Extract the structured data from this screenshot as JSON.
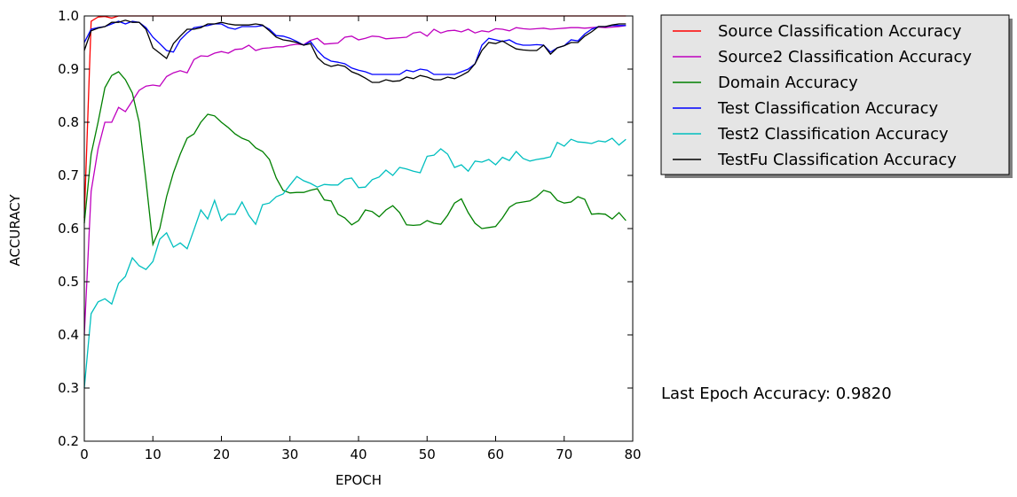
{
  "chart_data": {
    "type": "line",
    "title": "",
    "xlabel": "EPOCH",
    "ylabel": "ACCURACY",
    "xlim": [
      0,
      80
    ],
    "ylim": [
      0.2,
      1.0
    ],
    "xticks": [
      0,
      10,
      20,
      30,
      40,
      50,
      60,
      70,
      80
    ],
    "yticks": [
      0.2,
      0.3,
      0.4,
      0.5,
      0.6,
      0.7,
      0.8,
      0.9,
      1.0
    ],
    "xtick_labels": [
      "0",
      "10",
      "20",
      "30",
      "40",
      "50",
      "60",
      "70",
      "80"
    ],
    "ytick_labels": [
      "0.2",
      "0.3",
      "0.4",
      "0.5",
      "0.6",
      "0.7",
      "0.8",
      "0.9",
      "1.0"
    ],
    "grid": false,
    "legend_position": "outside-right-top",
    "annotation": "Last Epoch Accuracy: 0.9820",
    "series": [
      {
        "name": "Source Classification Accuracy",
        "color": "#ff0000",
        "x": [
          0,
          1,
          2,
          3,
          4,
          5,
          6,
          7,
          8,
          9,
          10,
          15,
          20,
          25,
          30,
          35,
          40,
          45,
          50,
          55,
          60,
          65,
          70,
          75,
          79
        ],
        "values": [
          0.62,
          0.99,
          0.998,
          0.999,
          0.996,
          1.0,
          1.0,
          1.0,
          1.0,
          1.0,
          1.0,
          1.0,
          1.0,
          1.0,
          1.0,
          1.0,
          1.0,
          1.0,
          1.0,
          1.0,
          1.0,
          1.0,
          1.0,
          1.0,
          1.0
        ]
      },
      {
        "name": "Source2 Classification Accuracy",
        "color": "#bf00bf",
        "x": [
          0,
          1,
          2,
          3,
          4,
          5,
          6,
          7,
          8,
          9,
          10,
          11,
          12,
          13,
          14,
          15,
          16,
          17,
          18,
          19,
          20,
          21,
          22,
          23,
          24,
          25,
          26,
          27,
          28,
          29,
          30,
          31,
          32,
          33,
          34,
          35,
          36,
          37,
          38,
          39,
          40,
          41,
          42,
          43,
          44,
          45,
          46,
          47,
          48,
          49,
          50,
          51,
          52,
          53,
          54,
          55,
          56,
          57,
          58,
          59,
          60,
          61,
          62,
          63,
          64,
          65,
          66,
          67,
          68,
          69,
          70,
          71,
          72,
          73,
          74,
          75,
          76,
          77,
          78,
          79
        ],
        "values": [
          0.4,
          0.67,
          0.75,
          0.8,
          0.8,
          0.828,
          0.82,
          0.84,
          0.86,
          0.868,
          0.87,
          0.868,
          0.886,
          0.893,
          0.897,
          0.893,
          0.918,
          0.925,
          0.924,
          0.93,
          0.933,
          0.93,
          0.937,
          0.938,
          0.945,
          0.935,
          0.939,
          0.94,
          0.942,
          0.942,
          0.945,
          0.947,
          0.946,
          0.954,
          0.958,
          0.947,
          0.948,
          0.949,
          0.96,
          0.962,
          0.955,
          0.958,
          0.962,
          0.961,
          0.957,
          0.958,
          0.959,
          0.96,
          0.968,
          0.97,
          0.962,
          0.975,
          0.968,
          0.972,
          0.973,
          0.97,
          0.975,
          0.968,
          0.972,
          0.97,
          0.976,
          0.975,
          0.972,
          0.978,
          0.976,
          0.975,
          0.976,
          0.977,
          0.975,
          0.976,
          0.977,
          0.978,
          0.978,
          0.977,
          0.978,
          0.979,
          0.978,
          0.979,
          0.98,
          0.982
        ]
      },
      {
        "name": "Domain Accuracy",
        "color": "#008000",
        "x": [
          0,
          1,
          2,
          3,
          4,
          5,
          6,
          7,
          8,
          9,
          10,
          11,
          12,
          13,
          14,
          15,
          16,
          17,
          18,
          19,
          20,
          21,
          22,
          23,
          24,
          25,
          26,
          27,
          28,
          29,
          30,
          31,
          32,
          33,
          34,
          35,
          36,
          37,
          38,
          39,
          40,
          41,
          42,
          43,
          44,
          45,
          46,
          47,
          48,
          49,
          50,
          51,
          52,
          53,
          54,
          55,
          56,
          57,
          58,
          59,
          60,
          61,
          62,
          63,
          64,
          65,
          66,
          67,
          68,
          69,
          70,
          71,
          72,
          73,
          74,
          75,
          76,
          77,
          78,
          79
        ],
        "values": [
          0.61,
          0.74,
          0.8,
          0.865,
          0.888,
          0.895,
          0.88,
          0.855,
          0.8,
          0.69,
          0.57,
          0.6,
          0.66,
          0.705,
          0.74,
          0.77,
          0.778,
          0.8,
          0.815,
          0.812,
          0.8,
          0.79,
          0.778,
          0.77,
          0.765,
          0.752,
          0.745,
          0.73,
          0.695,
          0.672,
          0.667,
          0.668,
          0.668,
          0.672,
          0.675,
          0.654,
          0.652,
          0.627,
          0.62,
          0.607,
          0.615,
          0.635,
          0.632,
          0.622,
          0.635,
          0.643,
          0.63,
          0.607,
          0.606,
          0.607,
          0.615,
          0.61,
          0.608,
          0.625,
          0.648,
          0.656,
          0.63,
          0.61,
          0.6,
          0.602,
          0.604,
          0.62,
          0.64,
          0.648,
          0.65,
          0.652,
          0.66,
          0.672,
          0.668,
          0.653,
          0.648,
          0.65,
          0.66,
          0.655,
          0.627,
          0.628,
          0.627,
          0.618,
          0.63,
          0.615
        ]
      },
      {
        "name": "Test Classification Accuracy",
        "color": "#0000ff",
        "x": [
          0,
          1,
          2,
          3,
          4,
          5,
          6,
          7,
          8,
          9,
          10,
          11,
          12,
          13,
          14,
          15,
          16,
          17,
          18,
          19,
          20,
          21,
          22,
          23,
          24,
          25,
          26,
          27,
          28,
          29,
          30,
          31,
          32,
          33,
          34,
          35,
          36,
          37,
          38,
          39,
          40,
          41,
          42,
          43,
          44,
          45,
          46,
          47,
          48,
          49,
          50,
          51,
          52,
          53,
          54,
          55,
          56,
          57,
          58,
          59,
          60,
          61,
          62,
          63,
          64,
          65,
          66,
          67,
          68,
          69,
          70,
          71,
          72,
          73,
          74,
          75,
          76,
          77,
          78,
          79
        ],
        "values": [
          0.95,
          0.975,
          0.978,
          0.98,
          0.985,
          0.99,
          0.985,
          0.99,
          0.988,
          0.978,
          0.96,
          0.948,
          0.935,
          0.932,
          0.955,
          0.968,
          0.978,
          0.98,
          0.982,
          0.985,
          0.985,
          0.978,
          0.975,
          0.98,
          0.98,
          0.98,
          0.982,
          0.975,
          0.963,
          0.962,
          0.958,
          0.952,
          0.945,
          0.952,
          0.935,
          0.922,
          0.915,
          0.913,
          0.91,
          0.902,
          0.898,
          0.895,
          0.89,
          0.89,
          0.89,
          0.89,
          0.89,
          0.898,
          0.895,
          0.9,
          0.898,
          0.89,
          0.89,
          0.89,
          0.89,
          0.895,
          0.9,
          0.91,
          0.945,
          0.958,
          0.955,
          0.952,
          0.955,
          0.948,
          0.945,
          0.945,
          0.946,
          0.945,
          0.932,
          0.94,
          0.944,
          0.955,
          0.953,
          0.966,
          0.975,
          0.98,
          0.98,
          0.982,
          0.982,
          0.982
        ]
      },
      {
        "name": "Test2 Classification Accuracy",
        "color": "#00bfbf",
        "x": [
          0,
          1,
          2,
          3,
          4,
          5,
          6,
          7,
          8,
          9,
          10,
          11,
          12,
          13,
          14,
          15,
          16,
          17,
          18,
          19,
          20,
          21,
          22,
          23,
          24,
          25,
          26,
          27,
          28,
          29,
          30,
          31,
          32,
          33,
          34,
          35,
          36,
          37,
          38,
          39,
          40,
          41,
          42,
          43,
          44,
          45,
          46,
          47,
          48,
          49,
          50,
          51,
          52,
          53,
          54,
          55,
          56,
          57,
          58,
          59,
          60,
          61,
          62,
          63,
          64,
          65,
          66,
          67,
          68,
          69,
          70,
          71,
          72,
          73,
          74,
          75,
          76,
          77,
          78,
          79
        ],
        "values": [
          0.3,
          0.44,
          0.462,
          0.468,
          0.458,
          0.497,
          0.51,
          0.545,
          0.53,
          0.523,
          0.538,
          0.58,
          0.592,
          0.565,
          0.573,
          0.562,
          0.598,
          0.635,
          0.618,
          0.653,
          0.615,
          0.627,
          0.627,
          0.65,
          0.625,
          0.608,
          0.645,
          0.648,
          0.66,
          0.665,
          0.682,
          0.698,
          0.69,
          0.685,
          0.678,
          0.683,
          0.682,
          0.682,
          0.693,
          0.695,
          0.677,
          0.678,
          0.692,
          0.697,
          0.71,
          0.7,
          0.715,
          0.712,
          0.708,
          0.705,
          0.736,
          0.738,
          0.75,
          0.74,
          0.715,
          0.72,
          0.708,
          0.727,
          0.725,
          0.73,
          0.72,
          0.734,
          0.728,
          0.745,
          0.732,
          0.727,
          0.73,
          0.732,
          0.735,
          0.762,
          0.755,
          0.768,
          0.763,
          0.762,
          0.76,
          0.765,
          0.763,
          0.77,
          0.757,
          0.768
        ]
      },
      {
        "name": "TestFu Classification Accuracy",
        "color": "#000000",
        "x": [
          0,
          1,
          2,
          3,
          4,
          5,
          6,
          7,
          8,
          9,
          10,
          11,
          12,
          13,
          14,
          15,
          16,
          17,
          18,
          19,
          20,
          21,
          22,
          23,
          24,
          25,
          26,
          27,
          28,
          29,
          30,
          31,
          32,
          33,
          34,
          35,
          36,
          37,
          38,
          39,
          40,
          41,
          42,
          43,
          44,
          45,
          46,
          47,
          48,
          49,
          50,
          51,
          52,
          53,
          54,
          55,
          56,
          57,
          58,
          59,
          60,
          61,
          62,
          63,
          64,
          65,
          66,
          67,
          68,
          69,
          70,
          71,
          72,
          73,
          74,
          75,
          76,
          77,
          78,
          79
        ],
        "values": [
          0.935,
          0.972,
          0.977,
          0.98,
          0.988,
          0.988,
          0.992,
          0.988,
          0.988,
          0.975,
          0.94,
          0.93,
          0.92,
          0.948,
          0.962,
          0.975,
          0.975,
          0.978,
          0.985,
          0.985,
          0.988,
          0.985,
          0.983,
          0.983,
          0.983,
          0.985,
          0.983,
          0.972,
          0.96,
          0.955,
          0.953,
          0.95,
          0.945,
          0.948,
          0.922,
          0.91,
          0.905,
          0.908,
          0.905,
          0.895,
          0.89,
          0.883,
          0.875,
          0.875,
          0.88,
          0.877,
          0.878,
          0.885,
          0.882,
          0.888,
          0.885,
          0.88,
          0.88,
          0.885,
          0.882,
          0.888,
          0.895,
          0.91,
          0.935,
          0.95,
          0.948,
          0.953,
          0.945,
          0.938,
          0.936,
          0.935,
          0.935,
          0.945,
          0.928,
          0.94,
          0.944,
          0.95,
          0.95,
          0.962,
          0.97,
          0.98,
          0.98,
          0.983,
          0.985,
          0.985
        ]
      }
    ]
  }
}
